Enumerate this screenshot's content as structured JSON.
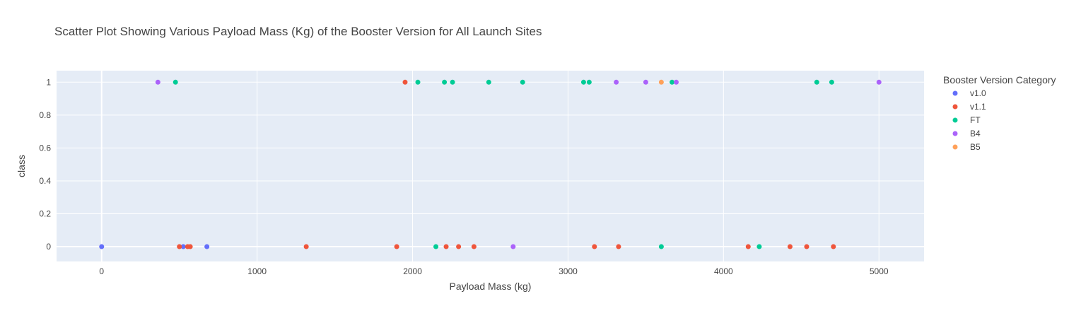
{
  "chart_data": {
    "type": "scatter",
    "title": "Scatter Plot Showing Various Payload Mass (Kg) of the Booster Version for All Launch Sites",
    "xlabel": "Payload Mass (kg)",
    "ylabel": "class",
    "xlim": [
      -290,
      5290
    ],
    "ylim": [
      -0.09,
      1.07
    ],
    "xticks": [
      0,
      1000,
      2000,
      3000,
      4000,
      5000
    ],
    "yticks": [
      0,
      0.2,
      0.4,
      0.6,
      0.8,
      1
    ],
    "grid": true,
    "background_color": "#E5ECF6",
    "legend": {
      "title": "Booster Version Category",
      "placement": "right"
    },
    "series": [
      {
        "name": "v1.0",
        "color": "#636EFA",
        "points": [
          [
            0,
            0
          ],
          [
            525,
            0
          ],
          [
            677,
            0
          ]
        ]
      },
      {
        "name": "v1.1",
        "color": "#EF553B",
        "points": [
          [
            500,
            0
          ],
          [
            553,
            0
          ],
          [
            570,
            0
          ],
          [
            1316,
            0
          ],
          [
            1898,
            0
          ],
          [
            1952,
            1
          ],
          [
            2216,
            0
          ],
          [
            2296,
            0
          ],
          [
            2395,
            0
          ],
          [
            3170,
            0
          ],
          [
            3325,
            0
          ],
          [
            4159,
            0
          ],
          [
            4428,
            0
          ],
          [
            4535,
            0
          ],
          [
            4707,
            0
          ]
        ]
      },
      {
        "name": "FT",
        "color": "#00CC96",
        "points": [
          [
            475,
            1
          ],
          [
            2034,
            1
          ],
          [
            2150,
            0
          ],
          [
            2205,
            1
          ],
          [
            2257,
            1
          ],
          [
            2490,
            1
          ],
          [
            2708,
            1
          ],
          [
            3100,
            1
          ],
          [
            3136,
            1
          ],
          [
            3600,
            0
          ],
          [
            3669,
            1
          ],
          [
            4230,
            0
          ],
          [
            4600,
            1
          ],
          [
            4696,
            1
          ]
        ]
      },
      {
        "name": "B4",
        "color": "#AB63FA",
        "points": [
          [
            362,
            1
          ],
          [
            2647,
            0
          ],
          [
            3310,
            1
          ],
          [
            3500,
            1
          ],
          [
            3696,
            1
          ],
          [
            5000,
            1
          ]
        ]
      },
      {
        "name": "B5",
        "color": "#FFA15A",
        "points": [
          [
            3600,
            1
          ]
        ]
      }
    ]
  }
}
